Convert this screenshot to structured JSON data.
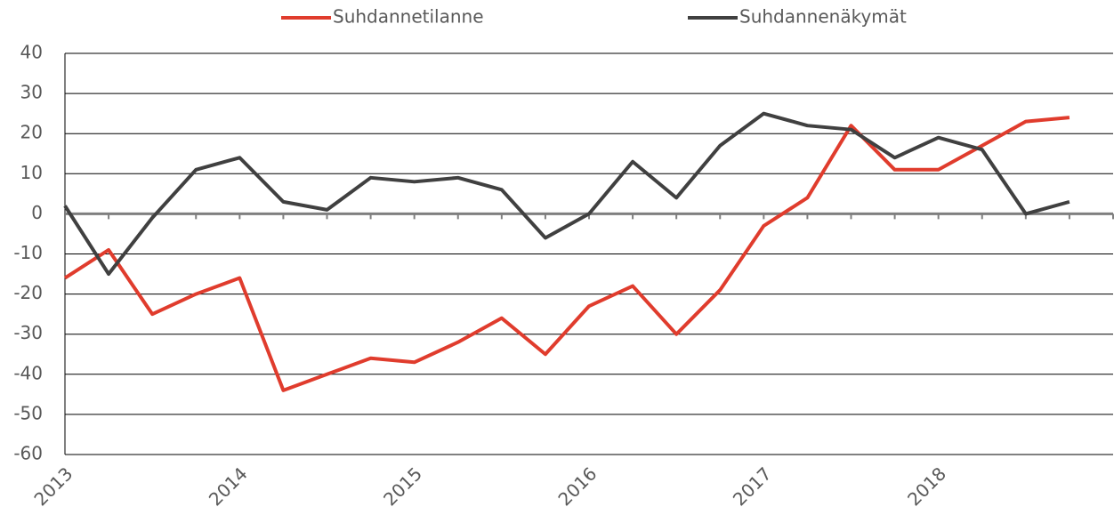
{
  "chart_data": {
    "type": "line",
    "categories": [
      "2013",
      null,
      null,
      null,
      "2014",
      null,
      null,
      null,
      "2015",
      null,
      null,
      null,
      "2016",
      null,
      null,
      null,
      "2017",
      null,
      null,
      null,
      "2018",
      null,
      null,
      null
    ],
    "series": [
      {
        "name": "Suhdannetilanne",
        "color": "#e03c2d",
        "values": [
          -16,
          -9,
          -25,
          -20,
          -16,
          -44,
          -40,
          -36,
          -37,
          -32,
          -26,
          -35,
          -23,
          -18,
          -30,
          -19,
          -3,
          4,
          22,
          11,
          11,
          17,
          23,
          24
        ]
      },
      {
        "name": "Suhdannenäkymät",
        "color": "#404040",
        "values": [
          2,
          -15,
          -1,
          11,
          14,
          3,
          1,
          9,
          8,
          9,
          6,
          -6,
          0,
          13,
          4,
          17,
          25,
          22,
          21,
          14,
          19,
          16,
          0,
          3
        ]
      }
    ],
    "ylim": [
      -60,
      40
    ],
    "yticks": [
      -60,
      -50,
      -40,
      -30,
      -20,
      -10,
      0,
      10,
      20,
      30,
      40
    ],
    "grid": true,
    "legend": "top"
  }
}
